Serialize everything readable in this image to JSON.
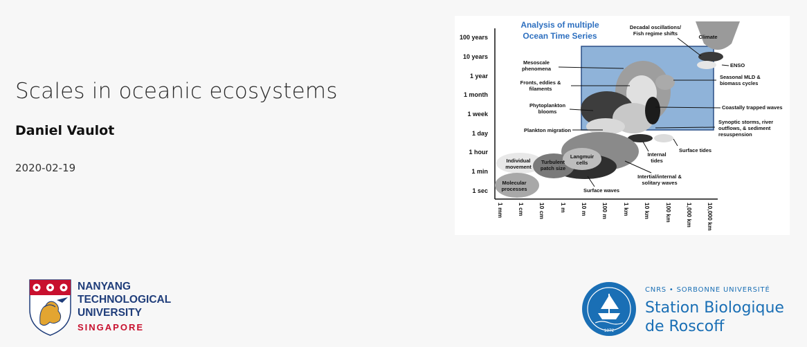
{
  "slide": {
    "title": "Scales in oceanic ecosystems",
    "author": "Daniel Vaulot",
    "date": "2020-02-19"
  },
  "figure": {
    "heading_line1": "Analysis of multiple",
    "heading_line2": "Ocean Time Series",
    "y_ticks": [
      "100 years",
      "10 years",
      "1 year",
      "1 month",
      "1 week",
      "1 day",
      "1 hour",
      "1 min",
      "1 sec"
    ],
    "x_ticks": [
      "1 mm",
      "1 cm",
      "10 cm",
      "1 m",
      "10 m",
      "100 m",
      "1 km",
      "10 km",
      "100 km",
      "1,000 km",
      "10,000 km"
    ],
    "labels": {
      "decadal1": "Decadal oscillations/",
      "decadal2": "Fish regime shifts",
      "climate": "Climate",
      "enso": "ENSO",
      "mesoscale1": "Mesoscale",
      "mesoscale2": "phenomena",
      "fronts1": "Fronts, eddies &",
      "fronts2": "filaments",
      "seasonal1": "Seasonal MLD &",
      "seasonal2": "biomass cycles",
      "phyto1": "Phytoplankton",
      "phyto2": "blooms",
      "coastal": "Coastally trapped waves",
      "plankton_mig": "Plankton migration",
      "synoptic1": "Synoptic storms, river",
      "synoptic2": "outflows, & sediment",
      "synoptic3": "resuspension",
      "surface_tides": "Surface tides",
      "internal1": "Internal",
      "internal2": "tides",
      "individual1": "Individual",
      "individual2": "movement",
      "turbulent1": "Turbulent",
      "turbulent2": "patch size",
      "langmuir1": "Langmuir",
      "langmuir2": "cells",
      "inertial1": "Intertial/internal &",
      "inertial2": "solitary waves",
      "molecular1": "Molecular",
      "molecular2": "processes",
      "surface_waves": "Surface waves"
    }
  },
  "logos": {
    "ntu": {
      "line1": "NANYANG",
      "line2": "TECHNOLOGICAL",
      "line3": "UNIVERSITY",
      "line4": "SINGAPORE"
    },
    "sbr": {
      "top": "CNRS • SORBONNE UNIVERSITÉ",
      "line1": "Station Biologique",
      "line2": "de Roscoff",
      "year": "1872"
    }
  },
  "colors": {
    "ntu_blue": "#1f3d7a",
    "ntu_red": "#c8102e",
    "sbr_blue": "#1a6fb5",
    "heading_blue": "#2d6fbf",
    "box_blue": "#8fb3d9"
  }
}
